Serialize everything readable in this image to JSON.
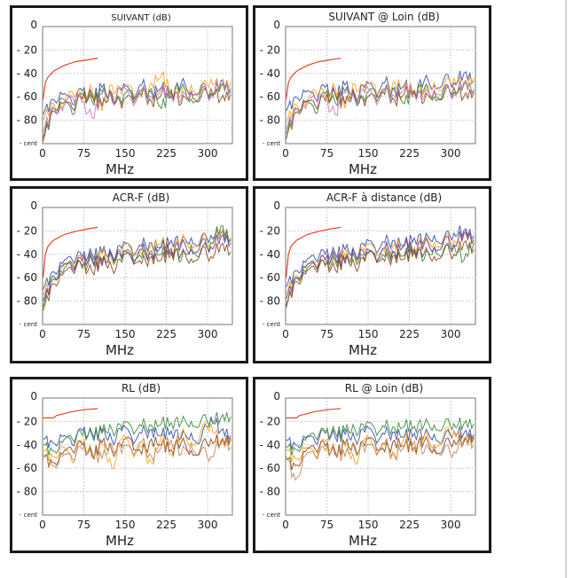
{
  "x_axis": {
    "label": "MHz",
    "ticks": [
      "0",
      "75",
      "150",
      "225",
      "300"
    ],
    "tick_values": [
      0,
      75,
      150,
      225,
      300
    ]
  },
  "y_axis": {
    "ticks": [
      "0",
      "- 20",
      "- 40",
      "- 60",
      "- 80",
      "- cent"
    ],
    "tick_values": [
      0,
      -20,
      -40,
      -60,
      -80,
      -100
    ]
  },
  "colors": {
    "limit": "#e8442a",
    "blue": "#3a4fa8",
    "orange": "#f5a623",
    "green": "#3d8a3d",
    "brown": "#8b4a1e",
    "pink": "#c77dc0",
    "purple": "#6a3d9a",
    "tan": "#c08a5a",
    "grid": "#bdbdbd"
  },
  "chart_data": [
    {
      "type": "line",
      "title": "SUIVANT (dB)",
      "xlabel": "MHz",
      "ylabel": "",
      "xlim": [
        0,
        345
      ],
      "ylim": [
        -100,
        0
      ],
      "grid": true,
      "x": [
        1,
        18,
        36,
        54,
        72,
        90,
        108,
        126,
        144,
        162,
        180,
        198,
        216,
        234,
        252,
        270,
        288,
        306,
        324,
        342
      ],
      "limit": {
        "x": [
          1,
          5,
          10,
          20,
          40,
          60,
          80,
          100
        ],
        "y": [
          -62,
          -48,
          -43,
          -38,
          -33,
          -30,
          -28.5,
          -27
        ]
      },
      "series": [
        {
          "color": "blue",
          "values": [
            -75,
            -62,
            -58,
            -66,
            -55,
            -60,
            -52,
            -63,
            -54,
            -58,
            -50,
            -56,
            -52,
            -60,
            -48,
            -55,
            -51,
            -58,
            -47,
            -53
          ]
        },
        {
          "color": "orange",
          "values": [
            -80,
            -65,
            -70,
            -56,
            -62,
            -53,
            -72,
            -50,
            -58,
            -52,
            -60,
            -48,
            -42,
            -55,
            -58,
            -50,
            -54,
            -45,
            -52,
            -48
          ]
        },
        {
          "color": "green",
          "values": [
            -95,
            -70,
            -62,
            -75,
            -58,
            -64,
            -56,
            -60,
            -66,
            -55,
            -59,
            -53,
            -70,
            -56,
            -52,
            -62,
            -55,
            -57,
            -50,
            -55
          ]
        },
        {
          "color": "brown",
          "values": [
            -98,
            -72,
            -66,
            -70,
            -62,
            -58,
            -68,
            -57,
            -70,
            -60,
            -55,
            -64,
            -58,
            -54,
            -66,
            -56,
            -60,
            -53,
            -62,
            -58
          ]
        },
        {
          "color": "pink",
          "values": [
            -90,
            -68,
            -72,
            -60,
            -65,
            -78,
            -58,
            -62,
            -55,
            -63,
            -57,
            -60,
            -54,
            -58,
            -62,
            -55,
            -50,
            -60,
            -46,
            -56
          ]
        }
      ]
    },
    {
      "type": "line",
      "title": "SUIVANT @ Loin (dB)",
      "xlabel": "MHz",
      "ylabel": "",
      "xlim": [
        0,
        345
      ],
      "ylim": [
        -100,
        0
      ],
      "grid": true,
      "x": [
        1,
        18,
        36,
        54,
        72,
        90,
        108,
        126,
        144,
        162,
        180,
        198,
        216,
        234,
        252,
        270,
        288,
        306,
        324,
        342
      ],
      "limit": {
        "x": [
          1,
          5,
          10,
          20,
          40,
          60,
          80,
          100
        ],
        "y": [
          -62,
          -48,
          -43,
          -38,
          -33,
          -30,
          -28.5,
          -27
        ]
      },
      "series": [
        {
          "color": "blue",
          "values": [
            -72,
            -60,
            -56,
            -62,
            -52,
            -58,
            -50,
            -60,
            -52,
            -55,
            -48,
            -54,
            -50,
            -56,
            -46,
            -50,
            -44,
            -48,
            -40,
            -46
          ]
        },
        {
          "color": "orange",
          "values": [
            -82,
            -66,
            -68,
            -55,
            -60,
            -52,
            -70,
            -49,
            -56,
            -50,
            -58,
            -47,
            -52,
            -54,
            -56,
            -48,
            -50,
            -44,
            -50,
            -44
          ]
        },
        {
          "color": "green",
          "values": [
            -92,
            -70,
            -64,
            -74,
            -57,
            -65,
            -55,
            -62,
            -64,
            -54,
            -58,
            -52,
            -66,
            -55,
            -53,
            -60,
            -54,
            -56,
            -49,
            -54
          ]
        },
        {
          "color": "brown",
          "values": [
            -96,
            -73,
            -65,
            -68,
            -63,
            -57,
            -66,
            -58,
            -68,
            -59,
            -54,
            -63,
            -57,
            -55,
            -64,
            -55,
            -58,
            -52,
            -60,
            -56
          ]
        },
        {
          "color": "pink",
          "values": [
            -88,
            -69,
            -70,
            -61,
            -64,
            -75,
            -57,
            -63,
            -56,
            -62,
            -56,
            -59,
            -53,
            -57,
            -60,
            -54,
            -52,
            -58,
            -47,
            -55
          ]
        }
      ]
    },
    {
      "type": "line",
      "title": "ACR-F (dB)",
      "xlabel": "MHz",
      "ylabel": "",
      "xlim": [
        0,
        345
      ],
      "ylim": [
        -100,
        0
      ],
      "grid": true,
      "x": [
        1,
        18,
        36,
        54,
        72,
        90,
        108,
        126,
        144,
        162,
        180,
        198,
        216,
        234,
        252,
        270,
        288,
        306,
        324,
        342
      ],
      "limit": {
        "x": [
          1,
          5,
          10,
          20,
          40,
          60,
          80,
          100
        ],
        "y": [
          -60,
          -40,
          -33,
          -28,
          -23,
          -20.5,
          -18.5,
          -17
        ]
      },
      "series": [
        {
          "color": "blue",
          "values": [
            -70,
            -55,
            -48,
            -45,
            -42,
            -40,
            -38,
            -41,
            -35,
            -36,
            -33,
            -30,
            -34,
            -28,
            -30,
            -26,
            -28,
            -24,
            -22,
            -27
          ]
        },
        {
          "color": "orange",
          "values": [
            -75,
            -60,
            -52,
            -50,
            -44,
            -46,
            -40,
            -45,
            -38,
            -34,
            -40,
            -32,
            -30,
            -36,
            -28,
            -31,
            -25,
            -30,
            -20,
            -26
          ]
        },
        {
          "color": "green",
          "values": [
            -85,
            -58,
            -56,
            -48,
            -52,
            -45,
            -48,
            -42,
            -44,
            -39,
            -43,
            -37,
            -40,
            -35,
            -45,
            -33,
            -38,
            -30,
            -16,
            -28
          ]
        },
        {
          "color": "purple",
          "values": [
            -80,
            -62,
            -50,
            -52,
            -46,
            -43,
            -50,
            -40,
            -42,
            -44,
            -36,
            -40,
            -33,
            -38,
            -32,
            -36,
            -30,
            -34,
            -25,
            -30
          ]
        },
        {
          "color": "brown",
          "values": [
            -88,
            -65,
            -58,
            -54,
            -50,
            -55,
            -45,
            -52,
            -47,
            -41,
            -48,
            -42,
            -45,
            -39,
            -40,
            -44,
            -36,
            -42,
            -32,
            -38
          ]
        }
      ]
    },
    {
      "type": "line",
      "title": "ACR-F à distance (dB)",
      "xlabel": "MHz",
      "ylabel": "",
      "xlim": [
        0,
        345
      ],
      "ylim": [
        -100,
        0
      ],
      "grid": true,
      "x": [
        1,
        18,
        36,
        54,
        72,
        90,
        108,
        126,
        144,
        162,
        180,
        198,
        216,
        234,
        252,
        270,
        288,
        306,
        324,
        342
      ],
      "limit": {
        "x": [
          1,
          5,
          10,
          20,
          40,
          60,
          80,
          100
        ],
        "y": [
          -60,
          -40,
          -33,
          -28,
          -23,
          -20.5,
          -18.5,
          -17
        ]
      },
      "series": [
        {
          "color": "blue",
          "values": [
            -68,
            -54,
            -47,
            -44,
            -40,
            -39,
            -36,
            -40,
            -33,
            -34,
            -30,
            -28,
            -32,
            -26,
            -28,
            -24,
            -26,
            -22,
            -20,
            -24
          ]
        },
        {
          "color": "orange",
          "values": [
            -74,
            -58,
            -52,
            -48,
            -45,
            -44,
            -41,
            -43,
            -37,
            -35,
            -38,
            -31,
            -33,
            -34,
            -29,
            -30,
            -27,
            -28,
            -24,
            -26
          ]
        },
        {
          "color": "green",
          "values": [
            -86,
            -60,
            -55,
            -50,
            -50,
            -46,
            -47,
            -43,
            -45,
            -40,
            -42,
            -38,
            -41,
            -36,
            -44,
            -34,
            -37,
            -32,
            -45,
            -30
          ]
        },
        {
          "color": "purple",
          "values": [
            -78,
            -60,
            -51,
            -50,
            -45,
            -42,
            -48,
            -39,
            -41,
            -42,
            -35,
            -38,
            -32,
            -36,
            -31,
            -34,
            -28,
            -32,
            -22,
            -28
          ]
        },
        {
          "color": "brown",
          "values": [
            -84,
            -63,
            -57,
            -53,
            -49,
            -53,
            -44,
            -50,
            -46,
            -40,
            -46,
            -41,
            -44,
            -38,
            -39,
            -42,
            -35,
            -40,
            -30,
            -36
          ]
        }
      ]
    },
    {
      "type": "line",
      "title": "RL (dB)",
      "xlabel": "MHz",
      "ylabel": "",
      "xlim": [
        0,
        345
      ],
      "ylim": [
        -100,
        0
      ],
      "grid": true,
      "x": [
        1,
        18,
        36,
        54,
        72,
        90,
        108,
        126,
        144,
        162,
        180,
        198,
        216,
        234,
        252,
        270,
        288,
        306,
        324,
        342
      ],
      "limit": {
        "x": [
          1,
          20,
          25,
          50,
          75,
          100
        ],
        "y": [
          -17,
          -17,
          -15,
          -12,
          -10,
          -9
        ]
      },
      "series": [
        {
          "color": "blue",
          "values": [
            -35,
            -38,
            -33,
            -40,
            -28,
            -32,
            -30,
            -36,
            -28,
            -34,
            -30,
            -27,
            -32,
            -28,
            -34,
            -30,
            -35,
            -16,
            -28,
            -32
          ]
        },
        {
          "color": "orange",
          "values": [
            -45,
            -50,
            -42,
            -55,
            -38,
            -48,
            -40,
            -60,
            -35,
            -45,
            -42,
            -55,
            -33,
            -48,
            -30,
            -38,
            -28,
            -22,
            -40,
            -36
          ]
        },
        {
          "color": "green",
          "values": [
            -40,
            -45,
            -38,
            -35,
            -32,
            -30,
            -28,
            -27,
            -26,
            -25,
            -24,
            -23,
            -22,
            -21,
            -21,
            -20,
            -19,
            -18,
            -17,
            -16
          ]
        },
        {
          "color": "brown",
          "values": [
            -50,
            -55,
            -48,
            -45,
            -40,
            -50,
            -38,
            -45,
            -42,
            -36,
            -48,
            -35,
            -40,
            -44,
            -38,
            -45,
            -42,
            -35,
            -38,
            -34
          ]
        },
        {
          "color": "tan",
          "values": [
            -48,
            -58,
            -50,
            -52,
            -44,
            -46,
            -52,
            -40,
            -47,
            -44,
            -38,
            -50,
            -42,
            -36,
            -48,
            -40,
            -45,
            -50,
            -36,
            -42
          ]
        }
      ]
    },
    {
      "type": "line",
      "title": "RL @ Loin (dB)",
      "xlabel": "MHz",
      "ylabel": "",
      "xlim": [
        0,
        345
      ],
      "ylim": [
        -100,
        0
      ],
      "grid": true,
      "x": [
        1,
        18,
        36,
        54,
        72,
        90,
        108,
        126,
        144,
        162,
        180,
        198,
        216,
        234,
        252,
        270,
        288,
        306,
        324,
        342
      ],
      "limit": {
        "x": [
          1,
          20,
          25,
          50,
          75,
          100
        ],
        "y": [
          -17,
          -17,
          -15,
          -12,
          -10,
          -9
        ]
      },
      "series": [
        {
          "color": "blue",
          "values": [
            -36,
            -40,
            -34,
            -38,
            -30,
            -33,
            -31,
            -35,
            -29,
            -33,
            -31,
            -29,
            -33,
            -30,
            -32,
            -31,
            -34,
            -28,
            -30,
            -31
          ]
        },
        {
          "color": "orange",
          "values": [
            -44,
            -52,
            -43,
            -50,
            -37,
            -46,
            -41,
            -55,
            -36,
            -44,
            -40,
            -50,
            -34,
            -45,
            -32,
            -40,
            -30,
            -28,
            -38,
            -34
          ]
        },
        {
          "color": "green",
          "values": [
            -42,
            -44,
            -36,
            -33,
            -30,
            -29,
            -28,
            -27,
            -26,
            -26,
            -25,
            -25,
            -24,
            -24,
            -23,
            -23,
            -22,
            -22,
            -22,
            -22
          ]
        },
        {
          "color": "brown",
          "values": [
            -52,
            -58,
            -46,
            -44,
            -41,
            -48,
            -39,
            -44,
            -41,
            -37,
            -46,
            -36,
            -41,
            -42,
            -37,
            -44,
            -40,
            -36,
            -37,
            -33
          ]
        },
        {
          "color": "tan",
          "values": [
            -50,
            -70,
            -49,
            -50,
            -45,
            -45,
            -50,
            -41,
            -46,
            -43,
            -39,
            -48,
            -41,
            -37,
            -46,
            -41,
            -44,
            -46,
            -35,
            -40
          ]
        }
      ]
    }
  ]
}
